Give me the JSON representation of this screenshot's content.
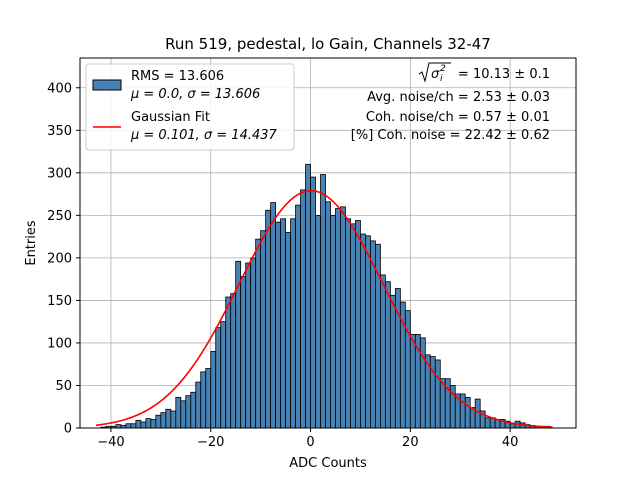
{
  "chart_data": {
    "type": "bar",
    "title": "Run 519, pedestal, lo Gain, Channels 32-47",
    "xlabel": "ADC Counts",
    "ylabel": "Entries",
    "xlim": [
      -46.2,
      53.2
    ],
    "ylim": [
      0,
      435
    ],
    "grid": true,
    "legend_position": "top-left",
    "x_ticks": [
      -40,
      -20,
      0,
      20,
      40
    ],
    "x_tick_labels": [
      "−40",
      "−20",
      "0",
      "20",
      "40"
    ],
    "y_ticks": [
      0,
      50,
      100,
      150,
      200,
      250,
      300,
      350,
      400
    ],
    "y_tick_labels": [
      "0",
      "50",
      "100",
      "150",
      "200",
      "250",
      "300",
      "350",
      "400"
    ],
    "histogram": {
      "name": "RMS = 13.606",
      "stats_label": "μ = 0.0, σ = 13.606",
      "bin_start": -42,
      "bin_width": 1,
      "counts": [
        1,
        2,
        2,
        4,
        3,
        5,
        5,
        9,
        7,
        11,
        10,
        15,
        18,
        22,
        20,
        36,
        32,
        38,
        42,
        54,
        66,
        70,
        90,
        118,
        125,
        154,
        158,
        196,
        178,
        194,
        200,
        222,
        232,
        256,
        265,
        242,
        246,
        230,
        246,
        262,
        280,
        310,
        295,
        250,
        298,
        266,
        250,
        258,
        260,
        246,
        240,
        244,
        228,
        226,
        220,
        216,
        180,
        172,
        156,
        164,
        148,
        138,
        110,
        110,
        106,
        86,
        84,
        80,
        58,
        58,
        50,
        40,
        40,
        36,
        24,
        34,
        20,
        12,
        12,
        10,
        10,
        8,
        5,
        8,
        6,
        4,
        3,
        2,
        2,
        2,
        0
      ],
      "fill": "#4682b4",
      "edge": "#000000"
    },
    "gaussian_fit": {
      "name": "Gaussian Fit",
      "stats_label": "μ = 0.101, σ = 14.437",
      "mu": 0.101,
      "sigma": 14.437,
      "amplitude": 279,
      "x_range": [
        -43,
        48.5
      ],
      "color": "#ff0000"
    },
    "annotations": [
      {
        "prefix": "= 10.13 ± 0.1"
      },
      {
        "text": "Avg. noise/ch = 2.53 ± 0.03"
      },
      {
        "text": "Coh. noise/ch = 0.57 ± 0.01"
      },
      {
        "text": "[%] Coh. noise = 22.42 ± 0.62"
      }
    ]
  }
}
